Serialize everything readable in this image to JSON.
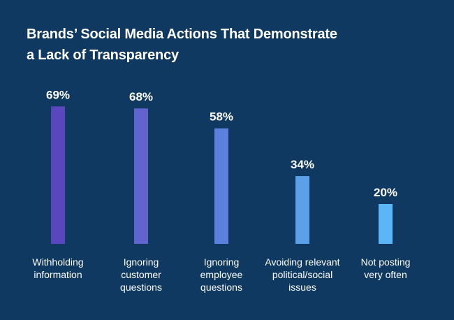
{
  "chart_data": {
    "type": "bar",
    "title": [
      "Brands’ Social Media Actions That Demonstrate",
      "a Lack of Transparency"
    ],
    "categories": [
      [
        "Withholding",
        "information"
      ],
      [
        "Ignoring",
        "customer",
        "questions"
      ],
      [
        "Ignoring",
        "employee",
        "questions"
      ],
      [
        "Avoiding relevant",
        "political/social",
        "issues"
      ],
      [
        "Not posting",
        "very often"
      ]
    ],
    "values": [
      69,
      68,
      58,
      34,
      20
    ],
    "value_labels": [
      "69%",
      "68%",
      "58%",
      "34%",
      "20%"
    ],
    "colors": [
      "#5b47bd",
      "#6064cc",
      "#5b80de",
      "#5aa1ea",
      "#5bb5f6"
    ],
    "ylim": [
      0,
      100
    ],
    "xlabel": "",
    "ylabel": "",
    "grid": false,
    "legend": "none"
  },
  "theme": {
    "background": "#0f3961",
    "text": "#ffffff"
  }
}
